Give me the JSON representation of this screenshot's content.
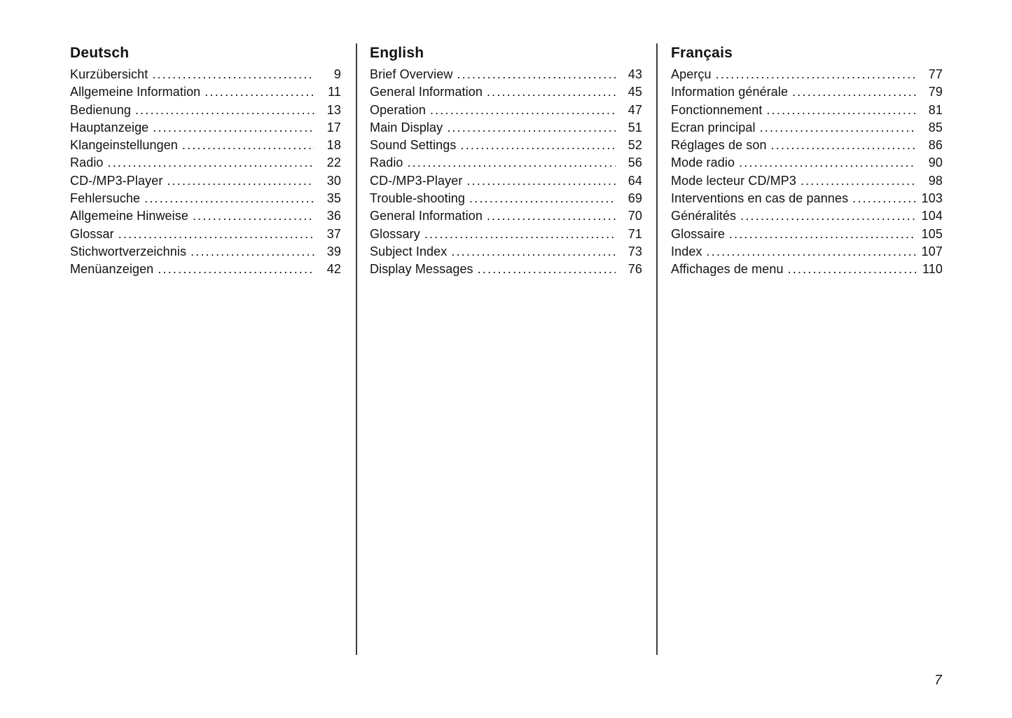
{
  "page": {
    "number": "7"
  },
  "columns": [
    {
      "heading": "Deutsch",
      "entries": [
        {
          "title": "Kurzübersicht",
          "page": "9"
        },
        {
          "title": "Allgemeine Information",
          "page": "11"
        },
        {
          "title": "Bedienung",
          "page": "13"
        },
        {
          "title": "Hauptanzeige",
          "page": "17"
        },
        {
          "title": "Klangeinstellungen",
          "page": "18"
        },
        {
          "title": "Radio",
          "page": "22"
        },
        {
          "title": "CD-/MP3-Player",
          "page": "30"
        },
        {
          "title": "Fehlersuche",
          "page": "35"
        },
        {
          "title": "Allgemeine Hinweise",
          "page": "36"
        },
        {
          "title": "Glossar",
          "page": "37"
        },
        {
          "title": "Stichwortverzeichnis",
          "page": "39"
        },
        {
          "title": "Menüanzeigen",
          "page": "42"
        }
      ]
    },
    {
      "heading": "English",
      "entries": [
        {
          "title": "Brief Overview",
          "page": "43"
        },
        {
          "title": "General Information",
          "page": "45"
        },
        {
          "title": "Operation",
          "page": "47"
        },
        {
          "title": "Main Display",
          "page": "51"
        },
        {
          "title": "Sound Settings",
          "page": "52"
        },
        {
          "title": "Radio",
          "page": "56"
        },
        {
          "title": "CD-/MP3-Player",
          "page": "64"
        },
        {
          "title": "Trouble-shooting",
          "page": "69"
        },
        {
          "title": "General Information",
          "page": "70"
        },
        {
          "title": "Glossary",
          "page": "71"
        },
        {
          "title": "Subject Index",
          "page": "73"
        },
        {
          "title": "Display Messages",
          "page": "76"
        }
      ]
    },
    {
      "heading": "Français",
      "entries": [
        {
          "title": "Aperçu",
          "page": "77"
        },
        {
          "title": "Information générale",
          "page": "79"
        },
        {
          "title": "Fonctionnement",
          "page": "81"
        },
        {
          "title": "Ecran principal",
          "page": "85"
        },
        {
          "title": "Réglages de son",
          "page": "86"
        },
        {
          "title": "Mode radio",
          "page": "90"
        },
        {
          "title": "Mode lecteur CD/MP3",
          "page": "98"
        },
        {
          "title": "Interventions en cas de pannes",
          "page": "103"
        },
        {
          "title": "Généralités",
          "page": "104"
        },
        {
          "title": "Glossaire",
          "page": "105"
        },
        {
          "title": "Index",
          "page": "107"
        },
        {
          "title": "Affichages de menu",
          "page": "110"
        }
      ]
    }
  ]
}
